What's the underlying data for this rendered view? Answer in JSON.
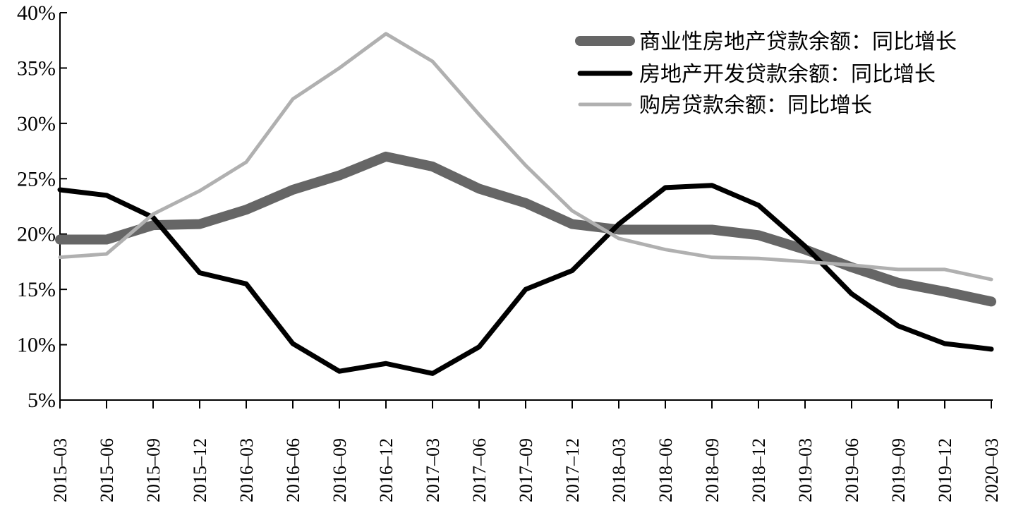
{
  "chart_data": {
    "type": "line",
    "title": "",
    "xlabel": "",
    "ylabel": "",
    "categories": [
      "2015–03",
      "2015–06",
      "2015–09",
      "2015–12",
      "2016–03",
      "2016–06",
      "2016–09",
      "2016–12",
      "2017–03",
      "2017–06",
      "2017–09",
      "2017–12",
      "2018–03",
      "2018–06",
      "2018–09",
      "2018–12",
      "2019–03",
      "2019–06",
      "2019–09",
      "2019–12",
      "2020–03"
    ],
    "ylim": [
      5,
      40
    ],
    "yticks": [
      5,
      10,
      15,
      20,
      25,
      30,
      35,
      40
    ],
    "ytick_labels": [
      "5%",
      "10%",
      "15%",
      "20%",
      "25%",
      "30%",
      "35%",
      "40%"
    ],
    "grid": false,
    "legend_position": "top-right",
    "series": [
      {
        "name": "商业性房地产贷款余额：同比增长",
        "color": "#666666",
        "width": 14,
        "values": [
          19.5,
          19.5,
          20.8,
          20.9,
          22.2,
          24.0,
          25.3,
          27.0,
          26.1,
          24.1,
          22.8,
          20.9,
          20.4,
          20.4,
          20.4,
          19.9,
          18.6,
          17.0,
          15.6,
          14.8,
          13.9
        ]
      },
      {
        "name": "房地产开发贷款余额：同比增长",
        "color": "#000000",
        "width": 7,
        "values": [
          24.0,
          23.5,
          21.5,
          16.5,
          15.5,
          10.1,
          7.6,
          8.3,
          7.4,
          9.8,
          15.0,
          16.7,
          20.9,
          24.2,
          24.4,
          22.6,
          18.9,
          14.6,
          11.7,
          10.1,
          9.6
        ]
      },
      {
        "name": "购房贷款余额：同比增长",
        "color": "#b0b0b0",
        "width": 5,
        "values": [
          17.9,
          18.2,
          21.8,
          23.9,
          26.5,
          32.2,
          35.0,
          38.1,
          35.6,
          30.8,
          26.2,
          22.1,
          19.6,
          18.6,
          17.9,
          17.8,
          17.5,
          17.2,
          16.8,
          16.8,
          15.9
        ]
      }
    ]
  }
}
